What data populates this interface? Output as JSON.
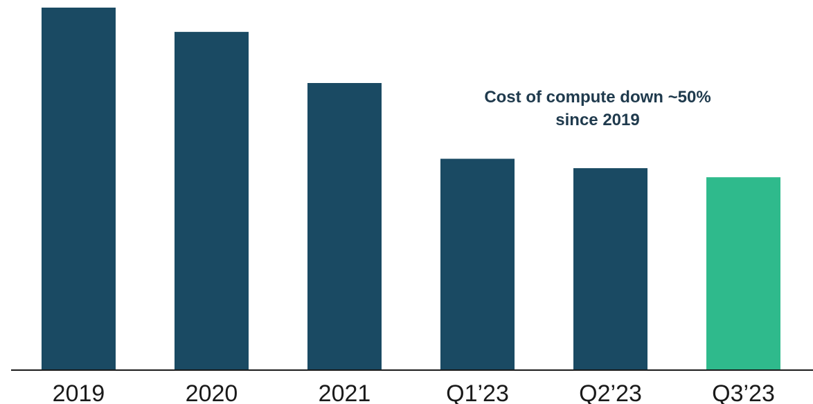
{
  "chart_data": {
    "type": "bar",
    "title": "",
    "xlabel": "",
    "ylabel": "",
    "categories": [
      "2019",
      "2020",
      "2021",
      "Q1’23",
      "Q2’23",
      "Q3’23"
    ],
    "values": [
      100,
      93.3,
      79.2,
      58.3,
      55.7,
      53.2
    ],
    "ylim": [
      0,
      100
    ],
    "grid": false,
    "colors": {
      "default_bar": "#1a4a63",
      "highlight_bar": "#2fba8c",
      "axis": "#1a1a1a"
    },
    "highlight_index": 5,
    "annotation": {
      "lines": [
        "Cost of compute down ~50%",
        "since 2019"
      ]
    }
  }
}
